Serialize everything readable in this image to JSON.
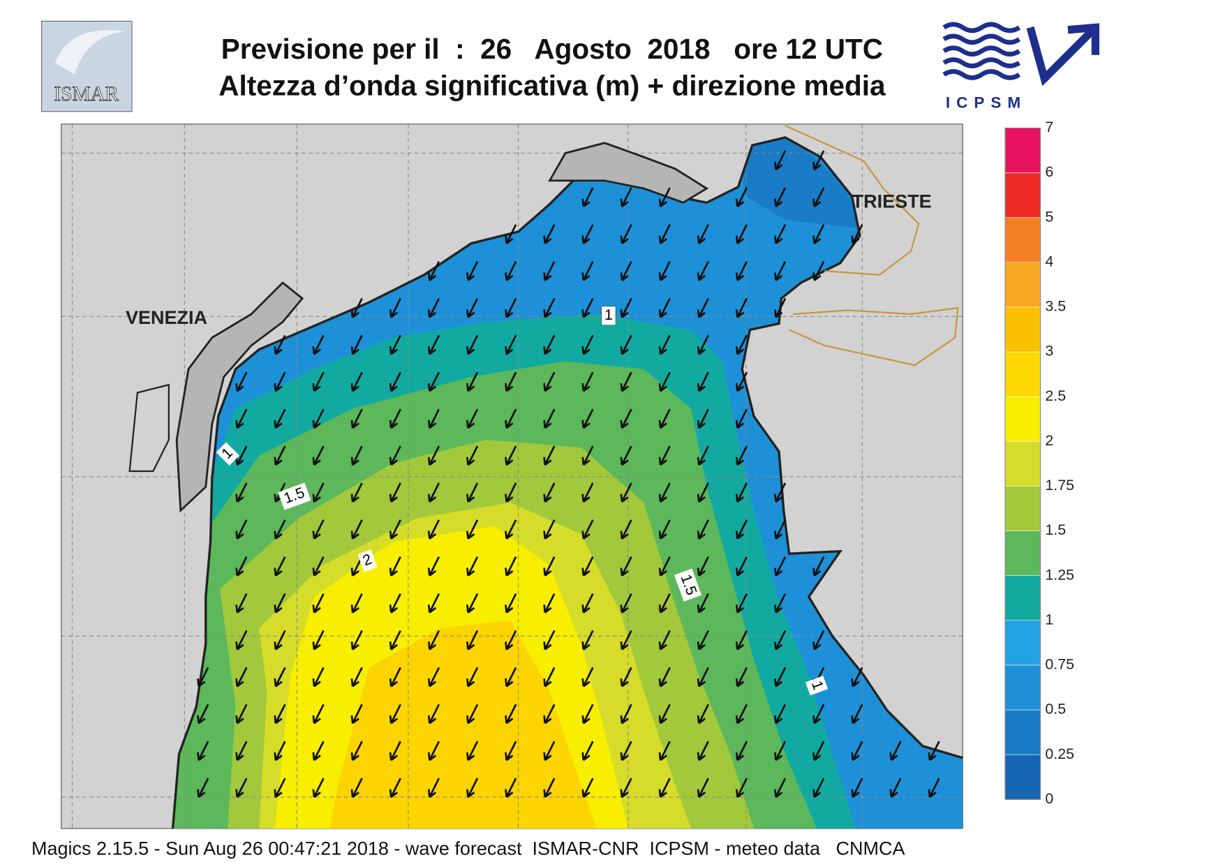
{
  "header": {
    "title": "Previsione per il  :  26   Agosto  2018   ore 12 UTC",
    "subtitle": "Altezza d’onda significativa (m) + direzione media",
    "logo_left": "ISMAR",
    "logo_right": "ICPSM"
  },
  "map": {
    "places": [
      "VENEZIA",
      "TRIESTE"
    ],
    "contour_labels": [
      "1",
      "1",
      "1.5",
      "2",
      "1.5",
      "1"
    ]
  },
  "colorbar": {
    "ticks": [
      0,
      0.25,
      0.5,
      0.75,
      1,
      1.25,
      1.5,
      1.75,
      2,
      2.5,
      3,
      3.5,
      4,
      5,
      6,
      7
    ],
    "colors": [
      "#1565b5",
      "#1a7cc6",
      "#1e90d8",
      "#22a3e6",
      "#12aaa0",
      "#5cb85a",
      "#a2c83c",
      "#d6dc2a",
      "#f7ee00",
      "#fcd800",
      "#fbc000",
      "#f7a621",
      "#f58024",
      "#ee2a24",
      "#e8125e"
    ]
  },
  "footer": "Magics 2.15.5 - Sun Aug 26 00:47:21 2018 - wave forecast  ISMAR-CNR  ICPSM - meteo data   CNMCA"
}
